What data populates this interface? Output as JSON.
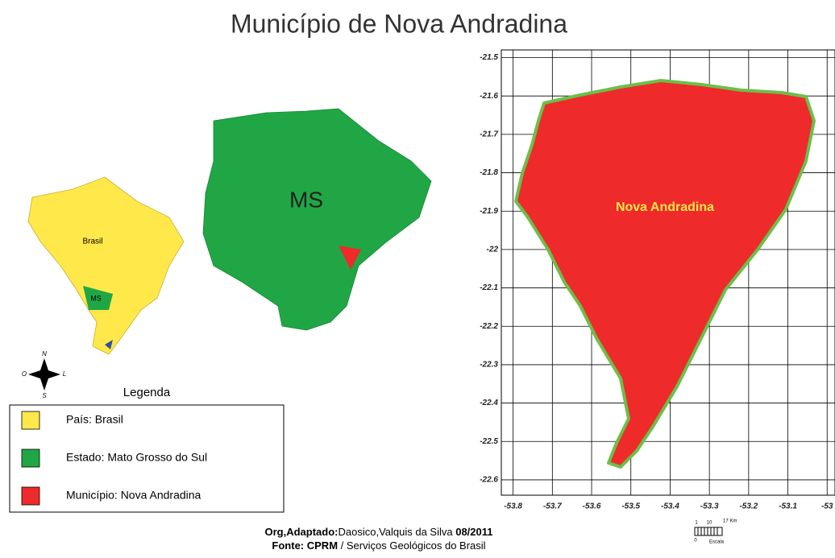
{
  "title": "Município de Nova Andradina",
  "inset_labels": {
    "brazil": "Brasil",
    "ms_small": "MS",
    "ms_large": "MS",
    "municipality": "Nova Andradina"
  },
  "compass": {
    "n": "N",
    "s": "S",
    "o": "O",
    "l": "L"
  },
  "legend": {
    "title": "Legenda",
    "items": [
      {
        "label": "País: Brasil",
        "color": "#ffe84a"
      },
      {
        "label": "Estado: Mato Grosso do Sul",
        "color": "#21a645"
      },
      {
        "label": "Município:  Nova Andradina",
        "color": "#ee2a2a"
      }
    ]
  },
  "map": {
    "xlim": [
      -53.83,
      -52.98
    ],
    "ylim": [
      -22.64,
      -21.48
    ],
    "xticks": [
      -53.8,
      -53.7,
      -53.6,
      -53.5,
      -53.4,
      -53.3,
      -53.2,
      -53.1,
      -53
    ],
    "yticks": [
      -21.5,
      -21.6,
      -21.7,
      -21.8,
      -21.9,
      -22,
      -22.1,
      -22.2,
      -22.3,
      -22.4,
      -22.5,
      -22.6
    ],
    "grid": true
  },
  "credits": {
    "line1": [
      {
        "text": "Org,Adaptado:",
        "bold": true
      },
      {
        "text": "Daosico,Valquis da Silva ",
        "bold": false
      },
      {
        "text": "08/2011",
        "bold": true
      }
    ],
    "line2": [
      {
        "text": "Fonte: CPRM",
        "bold": true
      },
      {
        "text": " / Serviços Geológicos do Brasil",
        "bold": false
      }
    ]
  },
  "scale": {
    "labels": [
      "1",
      "10",
      "17 Km"
    ],
    "zero": "0",
    "caption": "Escala"
  }
}
